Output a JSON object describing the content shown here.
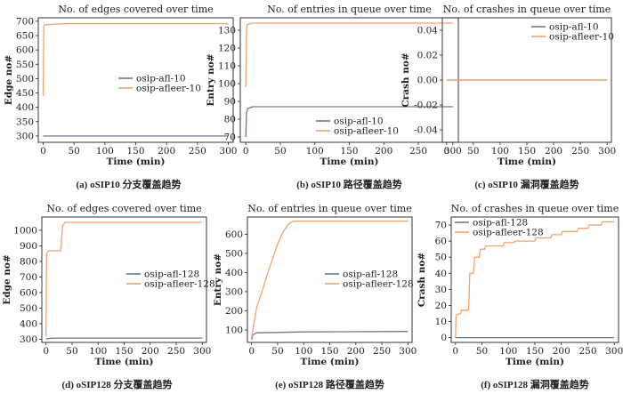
{
  "colors": {
    "afl": "#6d7a8f",
    "afleer": "#f2a36b",
    "axis": "#222222"
  },
  "charts": [
    {
      "type": "line",
      "title": "No. of edges covered over time",
      "xlabel": "Time (min)",
      "ylabel": "Edge no#",
      "caption": "(a) oSIP10 分支覆盖趋势",
      "xlim": [
        -8,
        308
      ],
      "ylim": [
        278,
        712
      ],
      "xticks": [
        "0",
        "50",
        "100",
        "150",
        "200",
        "250",
        "300"
      ],
      "yticks": [
        "300",
        "350",
        "400",
        "450",
        "500",
        "550",
        "600",
        "650",
        "700"
      ],
      "legend_position": "center-right",
      "series": [
        {
          "name": "osip-afl-10",
          "x": [
            0,
            300
          ],
          "y": [
            300,
            300
          ]
        },
        {
          "name": "osip-afleer-10",
          "x": [
            0,
            1,
            2,
            5,
            40,
            300
          ],
          "y": [
            440,
            685,
            687,
            688,
            692,
            692
          ]
        }
      ]
    },
    {
      "type": "line",
      "title": "No. of entries in queue over time",
      "xlabel": "Time (min)",
      "ylabel": "Entry no#",
      "caption": "(b) oSIP10 路径覆盖趋势",
      "xlim": [
        -8,
        308
      ],
      "ylim": [
        67,
        137
      ],
      "xticks": [
        "0",
        "50",
        "100",
        "150",
        "200",
        "250",
        "300"
      ],
      "yticks": [
        "70",
        "80",
        "90",
        "100",
        "110",
        "120",
        "130"
      ],
      "legend_position": "lower-right",
      "series": [
        {
          "name": "osip-afl-10",
          "x": [
            0,
            1,
            3,
            10,
            300
          ],
          "y": [
            70,
            84,
            86,
            87,
            87
          ]
        },
        {
          "name": "osip-afleer-10",
          "x": [
            0,
            1,
            2,
            8,
            300
          ],
          "y": [
            98,
            131,
            133,
            134,
            134
          ]
        }
      ]
    },
    {
      "type": "line",
      "title": "No. of crashes in queue over time",
      "xlabel": "Time (min)",
      "ylabel": "Crash no#",
      "caption": "(c) oSIP10 漏洞覆盖趋势",
      "xlim": [
        -8,
        308
      ],
      "ylim": [
        -0.05,
        0.05
      ],
      "xticks": [
        "0",
        "50",
        "100",
        "150",
        "200",
        "250",
        "300"
      ],
      "yticks": [
        "-0.04",
        "-0.02",
        "0.00",
        "0.02",
        "0.04"
      ],
      "legend_position": "top-right",
      "series": [
        {
          "name": "osip-afl-10",
          "x": [
            0,
            300
          ],
          "y": [
            0,
            0
          ]
        },
        {
          "name": "osip-afleer-10",
          "x": [
            0,
            300
          ],
          "y": [
            0,
            0
          ]
        }
      ]
    },
    {
      "type": "line",
      "title": "No. of edges covered over time",
      "xlabel": "Time (min)",
      "ylabel": "Edge no#",
      "caption": "(d) oSIP128 分支覆盖趋势",
      "xlim": [
        -8,
        308
      ],
      "ylim": [
        280,
        1085
      ],
      "xticks": [
        "0",
        "50",
        "100",
        "150",
        "200",
        "250",
        "300"
      ],
      "yticks": [
        "300",
        "400",
        "500",
        "600",
        "700",
        "800",
        "900",
        "1000"
      ],
      "legend_position": "center-right",
      "series": [
        {
          "name": "osip-afl-128",
          "x": [
            0,
            3,
            20,
            300
          ],
          "y": [
            300,
            305,
            308,
            308
          ]
        },
        {
          "name": "osip-afleer-128",
          "x": [
            0,
            1,
            5,
            28,
            32,
            36,
            300
          ],
          "y": [
            320,
            850,
            868,
            868,
            1030,
            1050,
            1050
          ]
        }
      ]
    },
    {
      "type": "line",
      "title": "No. of entries in queue over time",
      "xlabel": "Time (min)",
      "ylabel": "Entry no#",
      "caption": "(e) oSIP128 路径覆盖趋势",
      "xlim": [
        -8,
        308
      ],
      "ylim": [
        35,
        690
      ],
      "xticks": [
        "0",
        "50",
        "100",
        "150",
        "200",
        "250",
        "300"
      ],
      "yticks": [
        "100",
        "200",
        "300",
        "400",
        "500",
        "600"
      ],
      "legend_position": "center-right",
      "series": [
        {
          "name": "osip-afl-128",
          "x": [
            0,
            2,
            10,
            100,
            300
          ],
          "y": [
            50,
            75,
            85,
            90,
            92
          ]
        },
        {
          "name": "osip-afleer-128",
          "x": [
            0,
            5,
            10,
            20,
            30,
            40,
            50,
            60,
            70,
            80,
            300
          ],
          "y": [
            60,
            140,
            220,
            300,
            390,
            470,
            550,
            610,
            650,
            668,
            668
          ]
        }
      ]
    },
    {
      "type": "line",
      "title": "No. of crashes in queue over time",
      "xlabel": "Time (min)",
      "ylabel": "Crash no#",
      "caption": "(f) oSIP128 漏洞覆盖趋势",
      "xlim": [
        -8,
        308
      ],
      "ylim": [
        -3,
        75
      ],
      "xticks": [
        "0",
        "50",
        "100",
        "150",
        "200",
        "250",
        "300"
      ],
      "yticks": [
        "0",
        "10",
        "20",
        "30",
        "40",
        "50",
        "60",
        "70"
      ],
      "legend_position": "top-left",
      "series": [
        {
          "name": "osip-afl-128",
          "x": [
            0,
            300
          ],
          "y": [
            0,
            0
          ]
        },
        {
          "name": "osip-afleer-128",
          "x": [
            0,
            1,
            10,
            11,
            25,
            27,
            34,
            36,
            45,
            47,
            55,
            57,
            90,
            92,
            110,
            112,
            150,
            152,
            180,
            182,
            200,
            202,
            230,
            232,
            250,
            252,
            275,
            277,
            300
          ],
          "y": [
            0,
            14,
            15,
            17,
            17,
            40,
            40,
            50,
            50,
            55,
            55,
            57,
            57,
            59,
            59,
            60,
            60,
            62,
            62,
            64,
            64,
            66,
            66,
            68,
            68,
            70,
            70,
            72,
            72
          ]
        }
      ]
    }
  ]
}
